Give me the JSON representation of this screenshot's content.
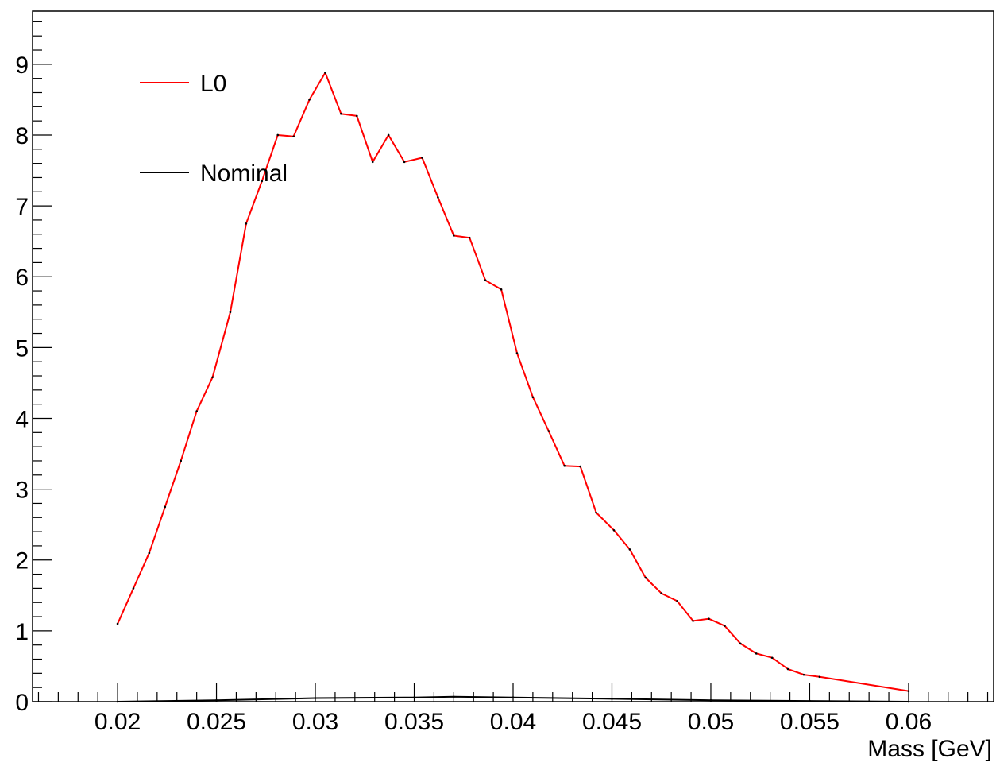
{
  "chart_data": {
    "type": "line",
    "title": "",
    "xlabel": "Mass [GeV]",
    "ylabel": "",
    "xlim": [
      0.0157,
      0.0643
    ],
    "ylim": [
      0,
      9.75
    ],
    "grid": false,
    "legend_position": "top-left",
    "x_ticks": [
      0.02,
      0.025,
      0.03,
      0.035,
      0.04,
      0.045,
      0.05,
      0.055,
      0.06
    ],
    "x_tick_labels": [
      "0.02",
      "0.025",
      "0.03",
      "0.035",
      "0.04",
      "0.045",
      "0.05",
      "0.055",
      "0.06"
    ],
    "y_ticks": [
      0,
      1,
      2,
      3,
      4,
      5,
      6,
      7,
      8,
      9
    ],
    "y_tick_labels": [
      "0",
      "1",
      "2",
      "3",
      "4",
      "5",
      "6",
      "7",
      "8",
      "9"
    ],
    "series": [
      {
        "name": "L0",
        "color": "#ff0000",
        "x": [
          0.02,
          0.0208,
          0.0216,
          0.0224,
          0.0232,
          0.024,
          0.0248,
          0.0257,
          0.0265,
          0.0273,
          0.0281,
          0.0289,
          0.0297,
          0.0305,
          0.0313,
          0.0321,
          0.0329,
          0.0337,
          0.0345,
          0.0354,
          0.0362,
          0.037,
          0.0378,
          0.0386,
          0.0394,
          0.0402,
          0.041,
          0.0418,
          0.0426,
          0.0434,
          0.0442,
          0.0451,
          0.0459,
          0.0467,
          0.0475,
          0.0483,
          0.0491,
          0.0499,
          0.0507,
          0.0515,
          0.0523,
          0.0531,
          0.0539,
          0.0547,
          0.0555,
          0.06
        ],
        "y": [
          1.1,
          1.6,
          2.1,
          2.75,
          3.4,
          4.1,
          4.58,
          5.5,
          6.75,
          7.35,
          8.0,
          7.98,
          8.5,
          8.88,
          8.3,
          8.27,
          7.62,
          8.0,
          7.62,
          7.68,
          7.12,
          6.58,
          6.55,
          5.95,
          5.82,
          4.92,
          4.3,
          3.82,
          3.33,
          3.32,
          2.67,
          2.42,
          2.15,
          1.75,
          1.53,
          1.42,
          1.14,
          1.17,
          1.07,
          0.82,
          0.68,
          0.62,
          0.46,
          0.38,
          0.35,
          0.15
        ]
      },
      {
        "name": "Nominal",
        "color": "#000000",
        "x": [
          0.02,
          0.025,
          0.03,
          0.035,
          0.037,
          0.04,
          0.045,
          0.05,
          0.055,
          0.06
        ],
        "y": [
          0.0,
          0.02,
          0.05,
          0.06,
          0.07,
          0.06,
          0.04,
          0.02,
          0.01,
          0.0
        ]
      }
    ]
  }
}
